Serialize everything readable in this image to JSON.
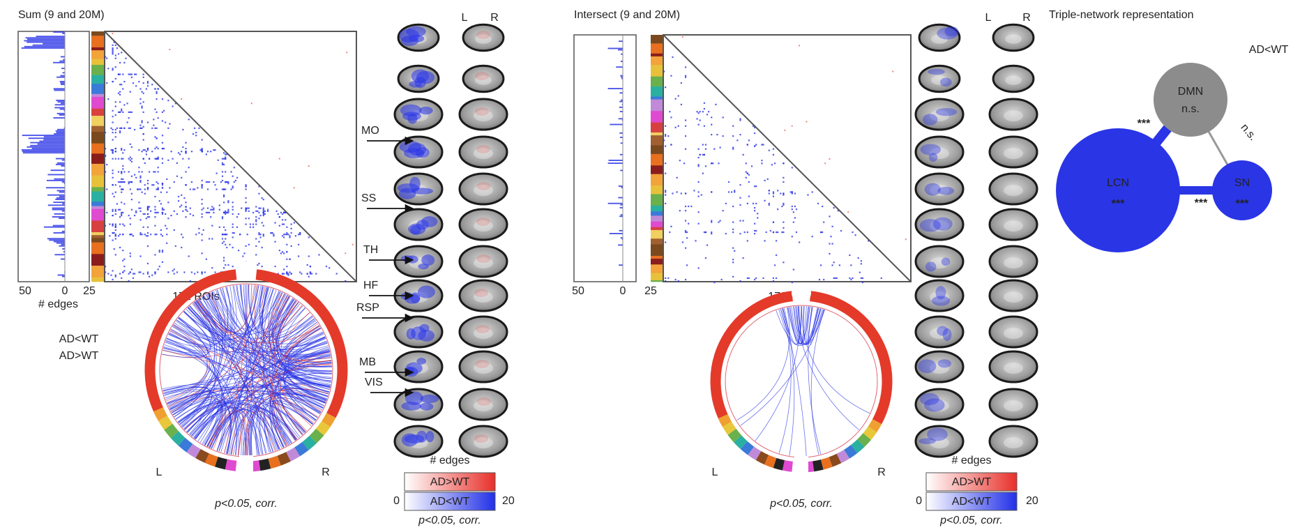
{
  "panels": [
    {
      "title": "Sum (9 and 20M)",
      "histogram_ticks": [
        "50",
        "0",
        "25"
      ],
      "histogram_label": "# edges",
      "matrix_label": "172 ROIs",
      "legend": [
        "AD<WT",
        "AD>WT"
      ],
      "circle_sides": [
        "L",
        "R"
      ],
      "circle_note": "p<0.05, corr.",
      "slice_columns": [
        "L",
        "R"
      ],
      "region_labels": [
        "MO",
        "SS",
        "TH",
        "HF",
        "RSP",
        "MB",
        "VIS"
      ],
      "colorbar": {
        "title": "# edges",
        "labels": [
          "AD>WT",
          "AD<WT"
        ],
        "min": "0",
        "max": "20",
        "note": "p<0.05, corr."
      }
    },
    {
      "title": "Intersect (9 and 20M)",
      "histogram_ticks": [
        "50",
        "0",
        "25"
      ],
      "matrix_label": "172 ROIs",
      "circle_sides": [
        "L",
        "R"
      ],
      "circle_note": "p<0.05, corr.",
      "slice_columns": [
        "L",
        "R"
      ],
      "colorbar": {
        "title": "# edges",
        "labels": [
          "AD>WT",
          "AD<WT"
        ],
        "min": "0",
        "max": "20",
        "note": "p<0.05, corr."
      }
    }
  ],
  "network": {
    "title": "Triple-network representation",
    "legend": "AD<WT",
    "nodes": [
      {
        "label": "DMN",
        "stat": "n.s."
      },
      {
        "label": "LCN",
        "stat": "***"
      },
      {
        "label": "SN",
        "stat": "***"
      }
    ],
    "edges": [
      {
        "stat": "***"
      },
      {
        "stat": "n.s."
      },
      {
        "stat": "***"
      }
    ]
  }
}
